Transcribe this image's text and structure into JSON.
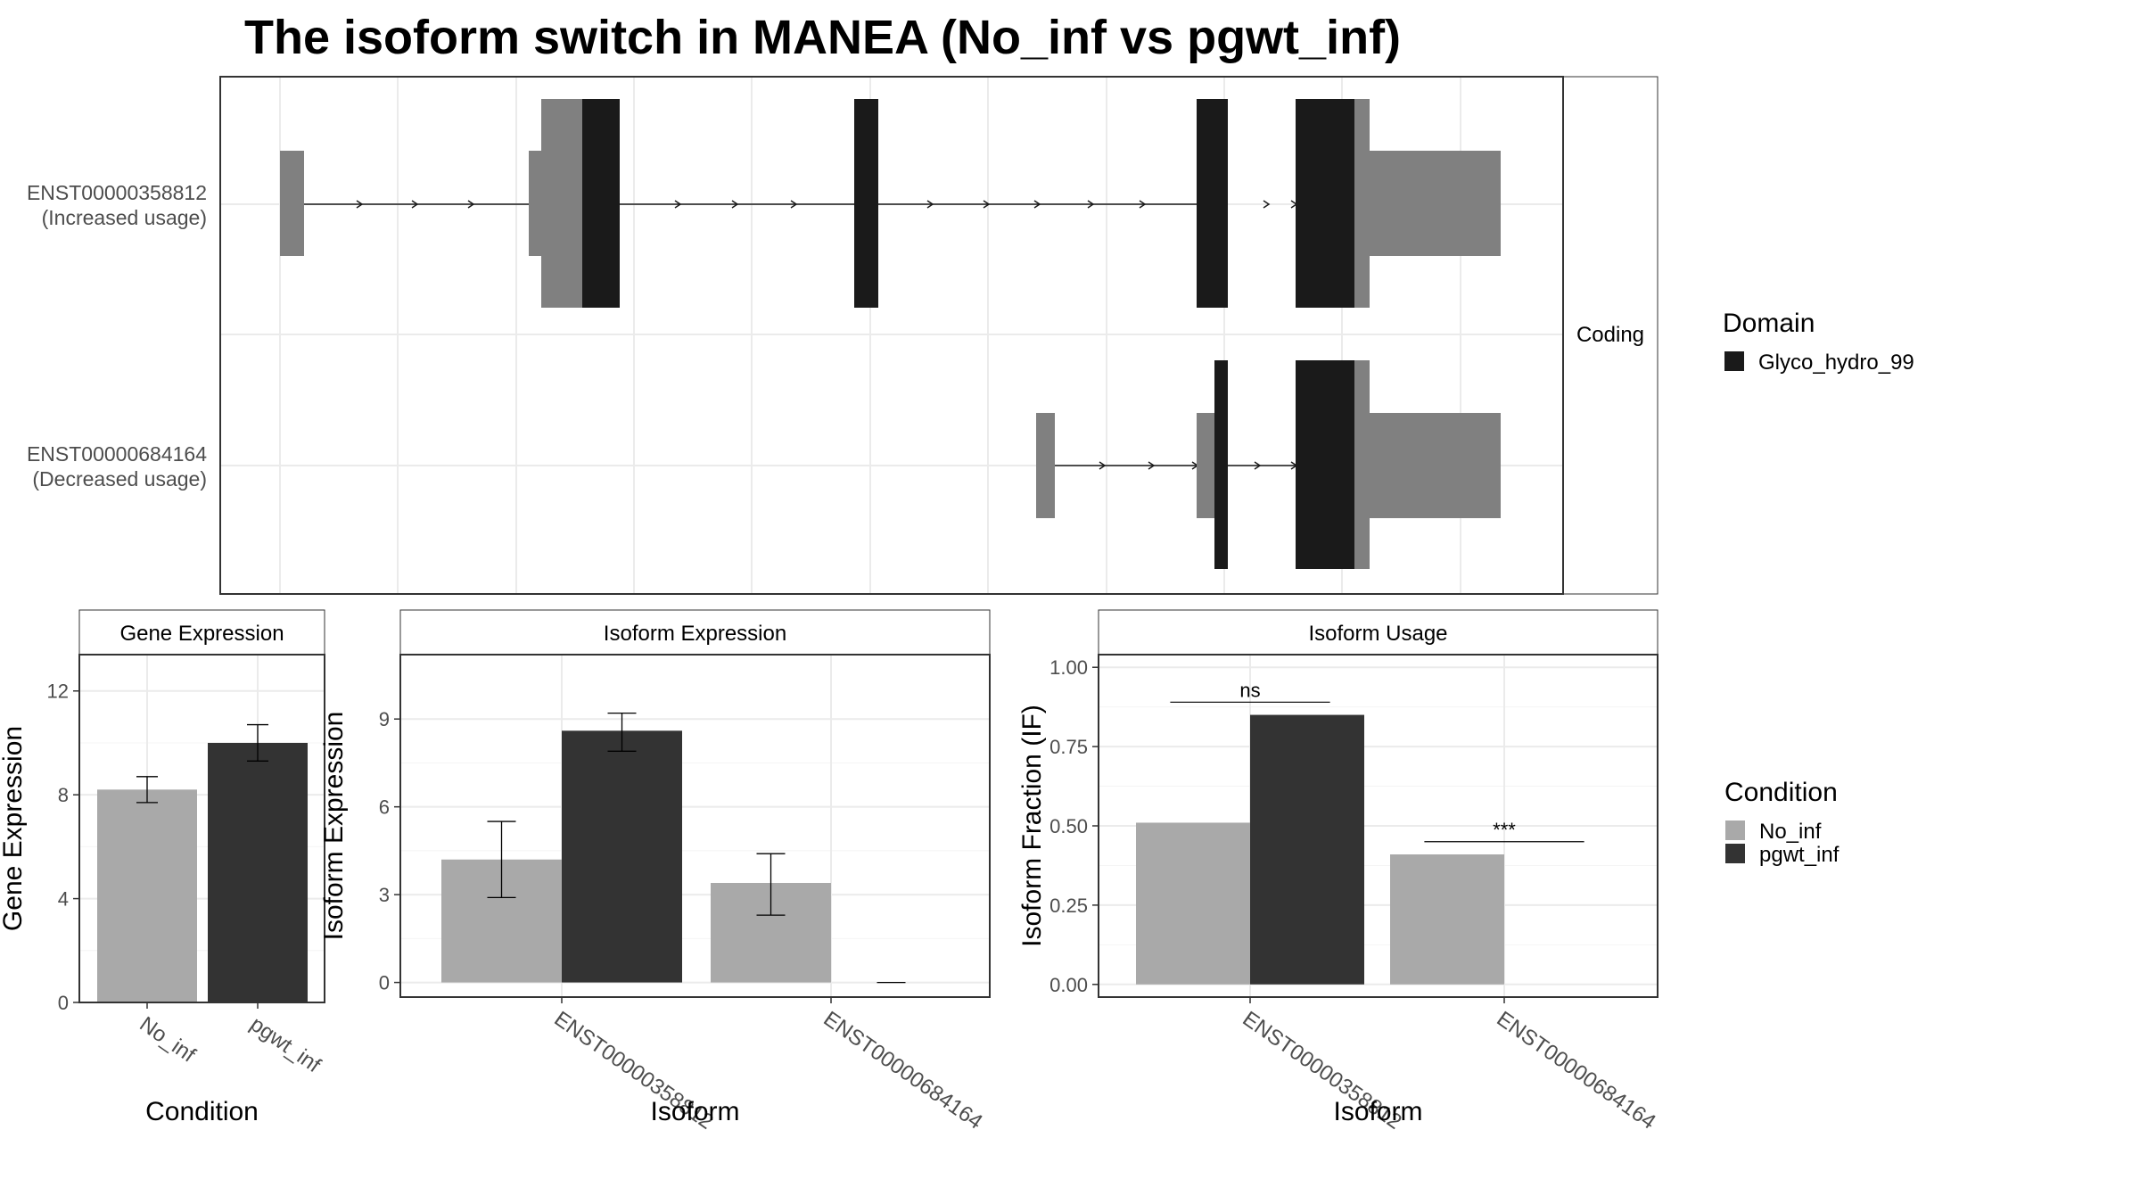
{
  "title": "The isoform switch in MANEA (No_inf vs pgwt_inf)",
  "colors": {
    "domain": "#1a1a1a",
    "utr": "#808080",
    "No_inf": "#a9a9a9",
    "pgwt_inf": "#333333",
    "grid": "#ebebeb",
    "panel_border": "#333333"
  },
  "structure": {
    "facet_label": "Coding",
    "isoforms": [
      {
        "id": "ENST00000358812",
        "usage": "(Increased usage)"
      },
      {
        "id": "ENST00000684164",
        "usage": "(Decreased usage)"
      }
    ],
    "legend": {
      "title": "Domain",
      "entries": [
        "Glyco_hydro_99"
      ]
    }
  },
  "condition_legend": {
    "title": "Condition",
    "entries": [
      "No_inf",
      "pgwt_inf"
    ]
  },
  "chart_data": [
    {
      "type": "bar",
      "title": "Gene Expression",
      "xlabel": "Condition",
      "ylabel": "Gene Expression",
      "categories": [
        "No_inf",
        "pgwt_inf"
      ],
      "values": [
        8.2,
        10.0
      ],
      "error_low": [
        7.7,
        9.3
      ],
      "error_high": [
        8.7,
        10.7
      ],
      "ylim": [
        0,
        13.4
      ],
      "yticks": [
        "0",
        "4",
        "8",
        "12"
      ],
      "ytick_values": [
        0,
        4,
        8,
        12
      ]
    },
    {
      "type": "bar",
      "title": "Isoform Expression",
      "xlabel": "Isoform",
      "ylabel": "Isoform Expression",
      "categories": [
        "ENST00000358812",
        "ENST00000684164"
      ],
      "series": [
        {
          "name": "No_inf",
          "values": [
            4.2,
            3.4
          ],
          "error_low": [
            2.9,
            2.3
          ],
          "error_high": [
            5.5,
            4.4
          ]
        },
        {
          "name": "pgwt_inf",
          "values": [
            8.6,
            0.0
          ],
          "error_low": [
            7.9,
            0.0
          ],
          "error_high": [
            9.2,
            0.0
          ]
        }
      ],
      "ylim": [
        -0.5,
        11.2
      ],
      "yticks": [
        "0",
        "3",
        "6",
        "9"
      ],
      "ytick_values": [
        0,
        3,
        6,
        9
      ]
    },
    {
      "type": "bar",
      "title": "Isoform Usage",
      "xlabel": "Isoform",
      "ylabel": "Isoform Fraction (IF)",
      "categories": [
        "ENST00000358812",
        "ENST00000684164"
      ],
      "series": [
        {
          "name": "No_inf",
          "values": [
            0.51,
            0.41
          ]
        },
        {
          "name": "pgwt_inf",
          "values": [
            0.85,
            0.0
          ]
        }
      ],
      "annotations": [
        "ns",
        "***"
      ],
      "ylim": [
        -0.04,
        1.04
      ],
      "yticks": [
        "0.00",
        "0.25",
        "0.50",
        "0.75",
        "1.00"
      ],
      "ytick_values": [
        0,
        0.25,
        0.5,
        0.75,
        1.0
      ]
    }
  ]
}
